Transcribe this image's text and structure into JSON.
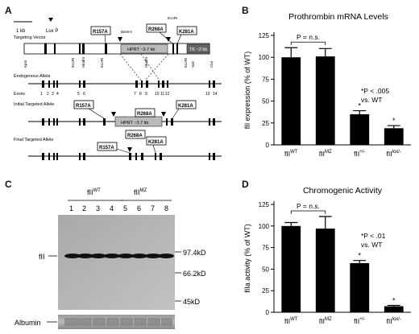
{
  "panels": {
    "A": {
      "label": "A",
      "scale_text": "1 kb",
      "loxp_text": "Lox P",
      "rows": {
        "targeting": "Targeting Vector",
        "endogenous": "Endogenous Allele",
        "initial": "Initial Targeted Allele",
        "final": "Final Targeted Allele"
      },
      "exons_label": "Exons",
      "exon_numbers": [
        "1",
        "2",
        "3",
        "4",
        "5",
        "6",
        "7",
        "8",
        "9",
        "10",
        "11",
        "12",
        "13",
        "14"
      ],
      "mutations": [
        "R157A",
        "R268A",
        "K281A"
      ],
      "sites": {
        "bamhi": "BamHI",
        "ecori": "EcoRI",
        "kpni": "KpnI",
        "hindiii": "HindIII",
        "sali": "SalI",
        "clai": "ClaI"
      },
      "cassettes": {
        "hprt": "HPRT ~3.7 kb",
        "tk": "TK ~2 kb"
      }
    },
    "B": {
      "label": "B",
      "chart_data": {
        "type": "bar",
        "title": "Prothrombin mRNA Levels",
        "ylabel": "fII expression (% of WT)",
        "ylim": [
          0,
          125
        ],
        "yticks": [
          0,
          25,
          50,
          75,
          100,
          125
        ],
        "categories": [
          "fII^WT",
          "fII^MZ",
          "fII^+/-",
          "fII^lox/-"
        ],
        "category_base": [
          "fII",
          "fII",
          "fII",
          "fII"
        ],
        "category_sup": [
          "WT",
          "MZ",
          "+/-",
          "lox/-"
        ],
        "values": [
          100,
          101,
          35,
          19
        ],
        "errors": [
          11,
          9,
          4,
          3
        ],
        "significance": [
          "",
          "",
          "*",
          "*"
        ],
        "bracket_text": "P = n.s.",
        "annotation": [
          "*P < .005",
          "vs. WT"
        ]
      }
    },
    "C": {
      "label": "C",
      "groups": [
        "fII^WT",
        "fII^MZ"
      ],
      "lanes": [
        "1",
        "2",
        "3",
        "4",
        "5",
        "6",
        "7",
        "8"
      ],
      "row_label": "fII",
      "markers": [
        "97.4kD",
        "66.2kD",
        "45kD"
      ],
      "bottom_label": "Albumin"
    },
    "D": {
      "label": "D",
      "chart_data": {
        "type": "bar",
        "title": "Chromogenic Activity",
        "ylabel": "fIIa activity (% of WT)",
        "ylim": [
          0,
          125
        ],
        "yticks": [
          0,
          25,
          50,
          75,
          100,
          125
        ],
        "categories": [
          "fII^WT",
          "fII^MZ",
          "fII^+/-",
          "fII^lox/-"
        ],
        "category_base": [
          "fII",
          "fII",
          "fII",
          "fII"
        ],
        "category_sup": [
          "WT",
          "MZ",
          "+/-",
          "lox/-"
        ],
        "values": [
          100,
          97,
          57,
          7
        ],
        "errors": [
          4,
          14,
          3,
          1
        ],
        "significance": [
          "",
          "",
          "*",
          "*"
        ],
        "bracket_text": "P = n.s.",
        "annotation": [
          "*P < .01",
          "vs. WT"
        ]
      }
    }
  }
}
